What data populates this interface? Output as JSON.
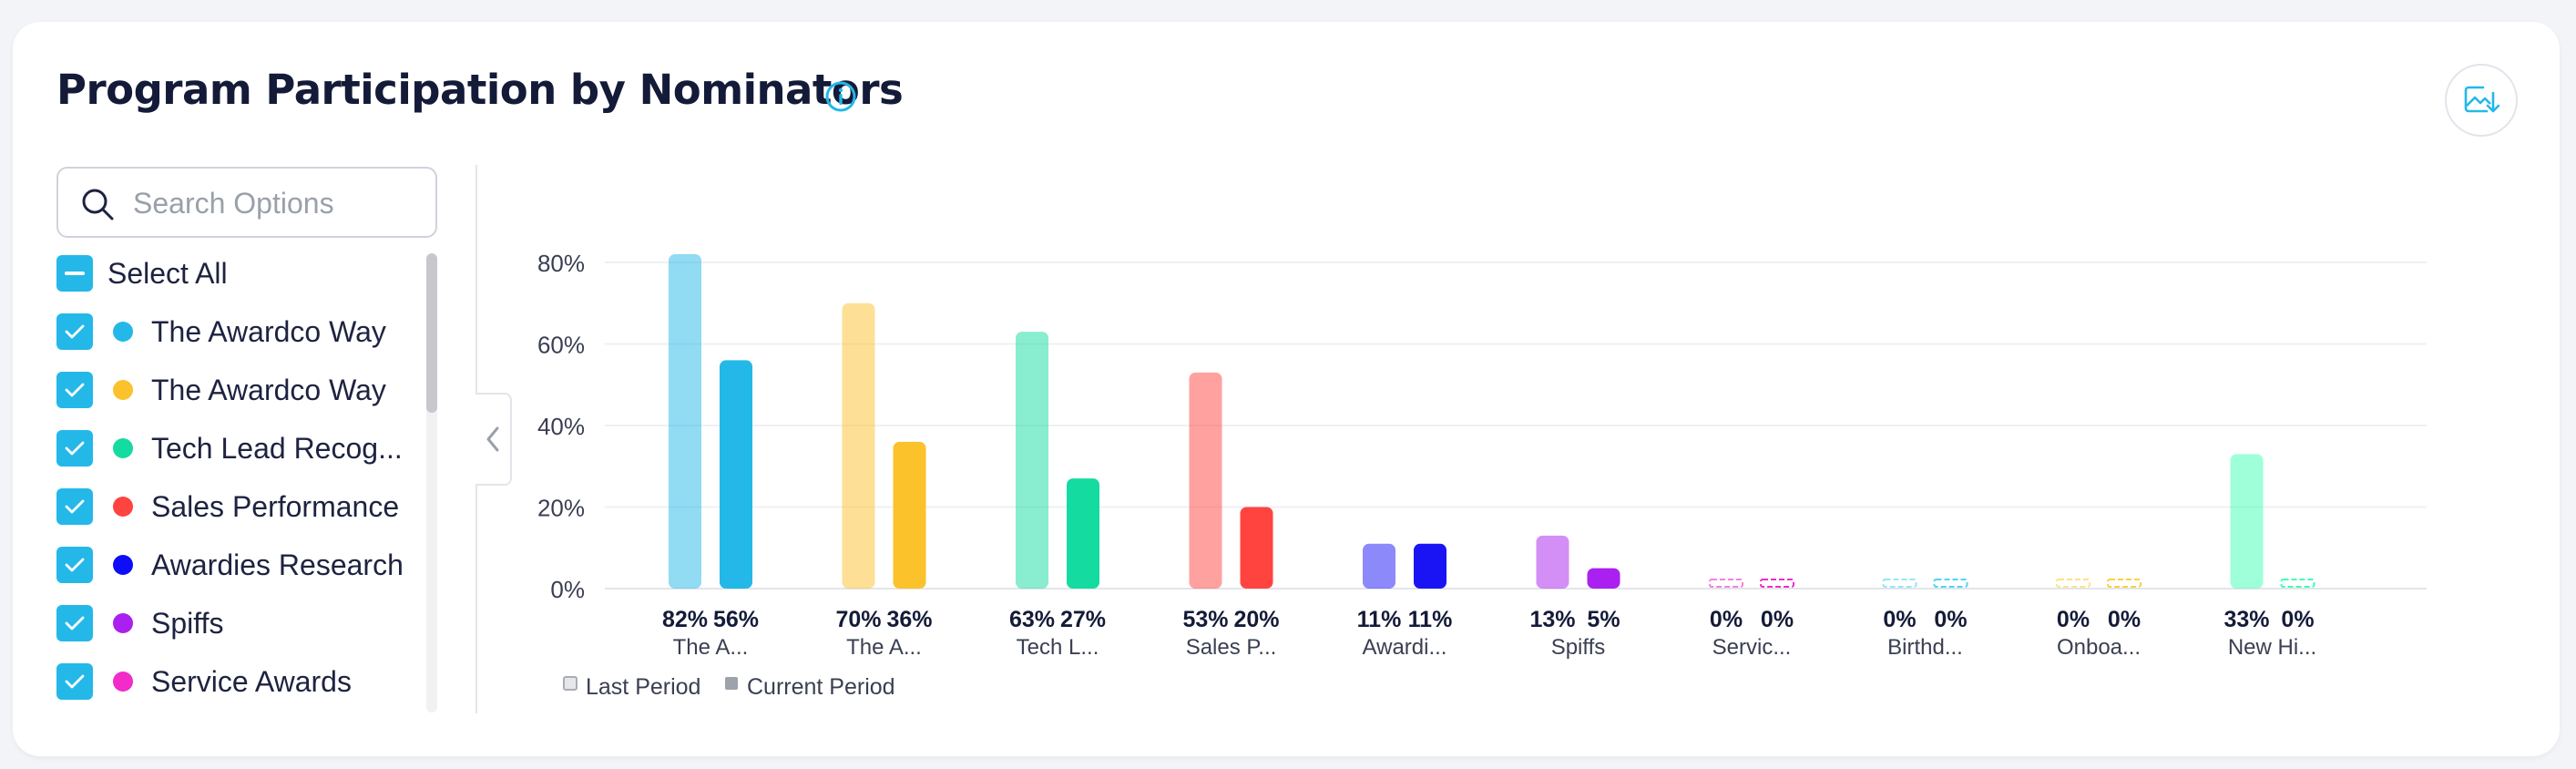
{
  "header": {
    "title": "Program Participation by Nominators"
  },
  "search": {
    "placeholder": "Search Options"
  },
  "filter": {
    "select_all_label": "Select All",
    "items": [
      {
        "label": "The Awardco Way",
        "color": "#23b8e8"
      },
      {
        "label": "The Awardco Way",
        "color": "#fcc22c"
      },
      {
        "label": "Tech Lead Recog...",
        "color": "#14dba0"
      },
      {
        "label": "Sales Performance",
        "color": "#ff4440"
      },
      {
        "label": "Awardies Research",
        "color": "#0d0ef7"
      },
      {
        "label": "Spiffs",
        "color": "#a920f0"
      },
      {
        "label": "Service Awards",
        "color": "#f22bc9"
      }
    ]
  },
  "chart_data": {
    "type": "bar",
    "categories": [
      "The A...",
      "The A...",
      "Tech L...",
      "Sales P...",
      "Awardi...",
      "Spiffs",
      "Servic...",
      "Birthd...",
      "Onboa...",
      "New Hi..."
    ],
    "series_colors": [
      "#23b8e8",
      "#fcc22c",
      "#14dba0",
      "#ff4440",
      "#1a14f5",
      "#a920f0",
      "#f22bc9",
      "#4fd6ef",
      "#fcd03c",
      "#3dffb4"
    ],
    "series": [
      {
        "name": "Last Period",
        "values": [
          82,
          70,
          63,
          53,
          11,
          13,
          0,
          0,
          0,
          33
        ]
      },
      {
        "name": "Current Period",
        "values": [
          56,
          36,
          27,
          20,
          11,
          5,
          0,
          0,
          0,
          0
        ]
      }
    ],
    "value_labels": [
      [
        "82%",
        "56%"
      ],
      [
        "70%",
        "36%"
      ],
      [
        "63%",
        "27%"
      ],
      [
        "53%",
        "20%"
      ],
      [
        "11%",
        "11%"
      ],
      [
        "13%",
        "5%"
      ],
      [
        "0%",
        "0%"
      ],
      [
        "0%",
        "0%"
      ],
      [
        "0%",
        "0%"
      ],
      [
        "33%",
        "0%"
      ]
    ],
    "y_ticks": [
      "0%",
      "20%",
      "40%",
      "60%",
      "80%"
    ],
    "y_tick_values": [
      0,
      20,
      40,
      60,
      80
    ],
    "ylim": [
      0,
      80
    ],
    "legend": [
      "Last Period",
      "Current Period"
    ],
    "legend_position": "bottom-left",
    "grid": true,
    "xlabel": "",
    "ylabel": ""
  }
}
